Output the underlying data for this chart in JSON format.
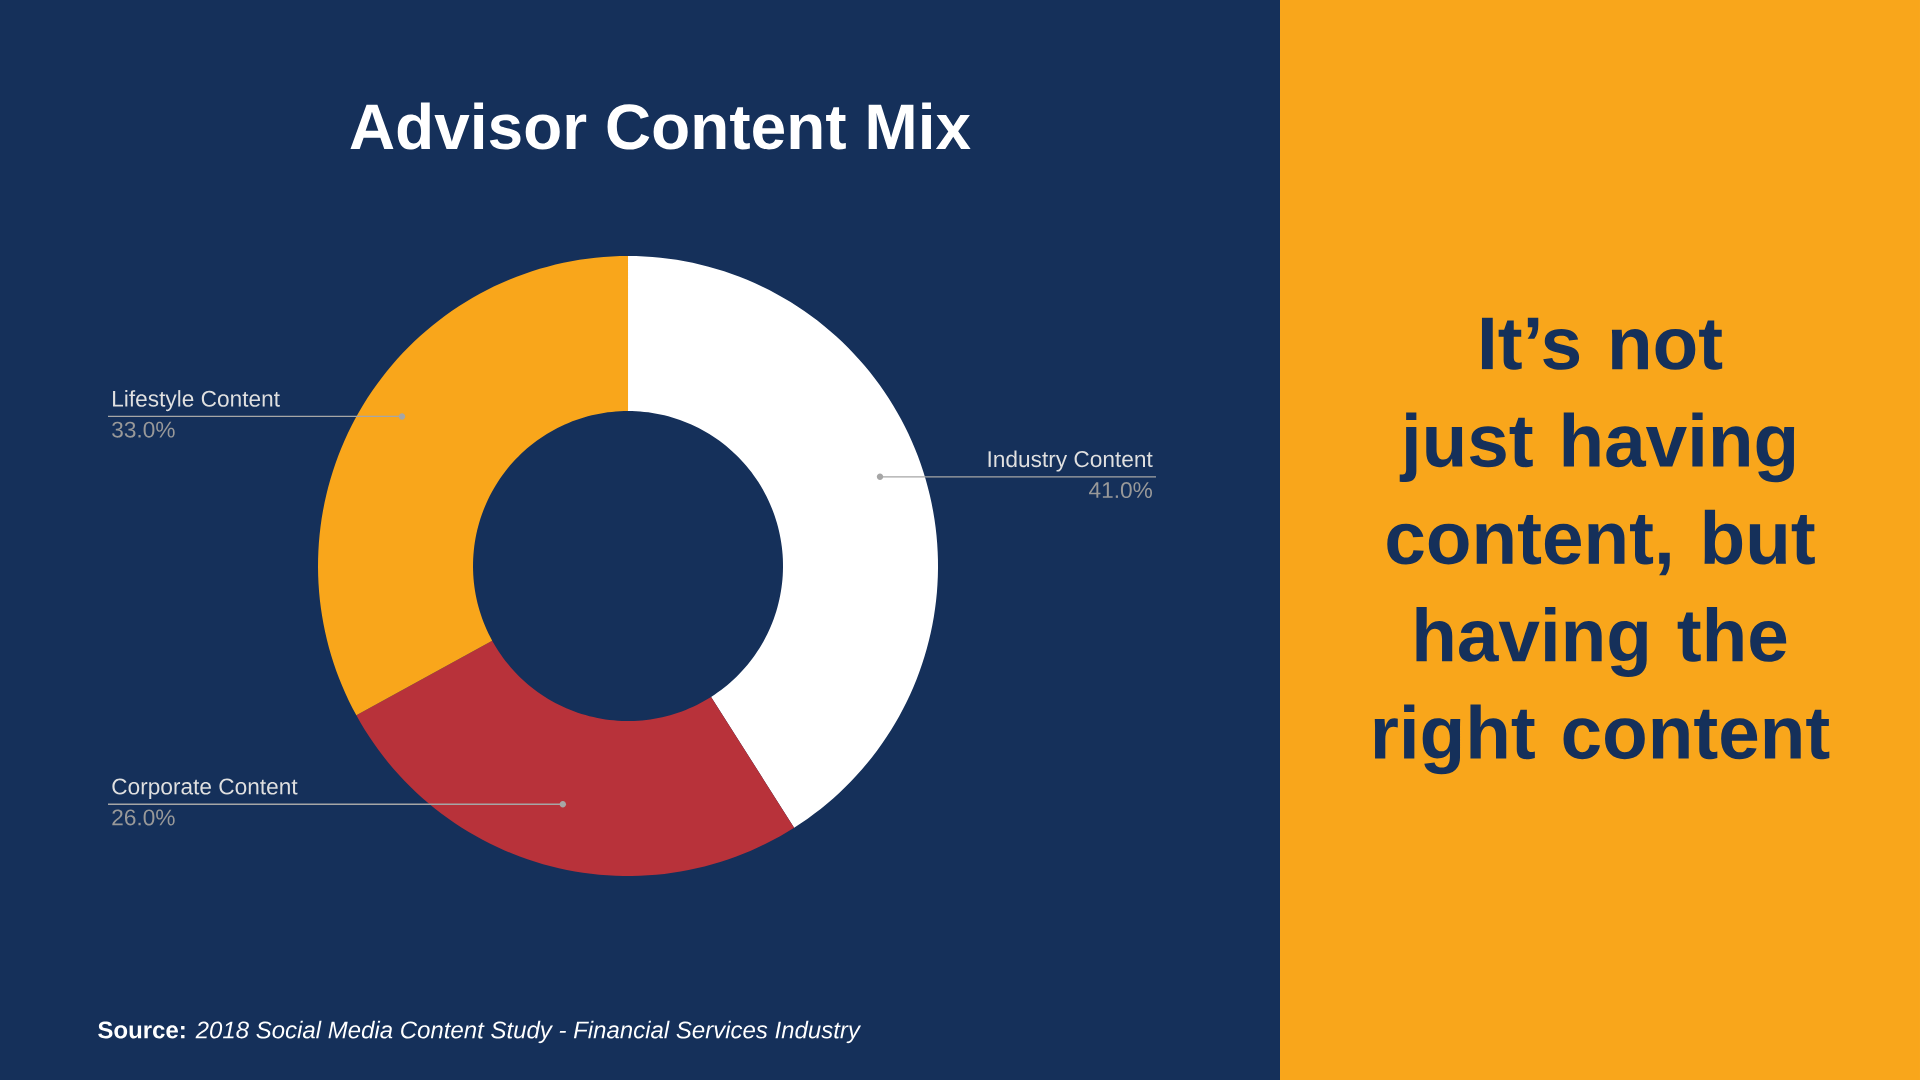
{
  "chart_data": {
    "type": "donut",
    "title": "Advisor Content Mix",
    "categories": [
      "Industry Content",
      "Corporate Content",
      "Lifestyle Content"
    ],
    "values": [
      41,
      26,
      33
    ],
    "value_labels": [
      "41.0%",
      "26.0%",
      "33.0%"
    ],
    "colors": [
      "#ffffff",
      "#b8323a",
      "#f9a61b"
    ],
    "annotations": [
      "It’s not just having content, but having the right content",
      "**Source:** *2018 Social Media Content Study - Financial Services Industry*"
    ]
  }
}
